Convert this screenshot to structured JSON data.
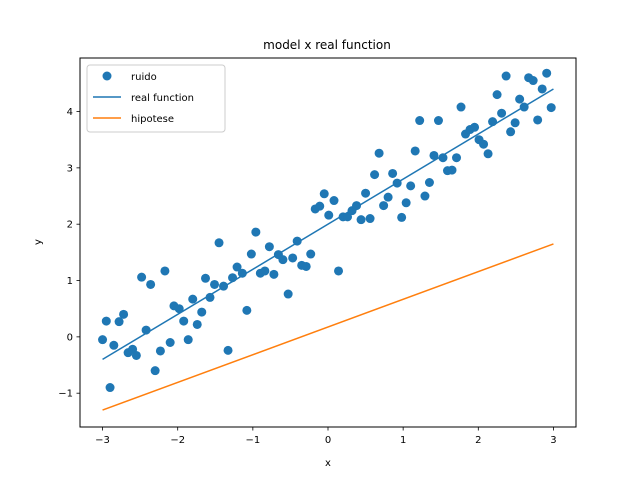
{
  "chart_data": {
    "type": "scatter",
    "title": "model x real function",
    "xlabel": "x",
    "ylabel": "y",
    "xlim": [
      -3.3,
      3.3
    ],
    "ylim": [
      -1.6,
      4.95
    ],
    "xticks": [
      -3,
      -2,
      -1,
      0,
      1,
      2,
      3
    ],
    "yticks": [
      -1,
      0,
      1,
      2,
      3,
      4
    ],
    "grid": false,
    "legend_position": "top-left",
    "series": [
      {
        "name": "ruido",
        "kind": "scatter",
        "color": "#1f77b4",
        "points": [
          [
            -3.0,
            -0.05
          ],
          [
            -2.95,
            0.28
          ],
          [
            -2.9,
            -0.9
          ],
          [
            -2.85,
            -0.15
          ],
          [
            -2.78,
            0.27
          ],
          [
            -2.72,
            0.4
          ],
          [
            -2.66,
            -0.28
          ],
          [
            -2.6,
            -0.22
          ],
          [
            -2.55,
            -0.33
          ],
          [
            -2.48,
            1.06
          ],
          [
            -2.42,
            0.12
          ],
          [
            -2.36,
            0.93
          ],
          [
            -2.3,
            -0.6
          ],
          [
            -2.23,
            -0.25
          ],
          [
            -2.17,
            1.17
          ],
          [
            -2.1,
            -0.1
          ],
          [
            -2.05,
            0.55
          ],
          [
            -1.98,
            0.5
          ],
          [
            -1.92,
            0.28
          ],
          [
            -1.86,
            -0.05
          ],
          [
            -1.8,
            0.67
          ],
          [
            -1.74,
            0.22
          ],
          [
            -1.68,
            0.44
          ],
          [
            -1.63,
            1.04
          ],
          [
            -1.57,
            0.7
          ],
          [
            -1.51,
            0.93
          ],
          [
            -1.45,
            1.67
          ],
          [
            -1.39,
            0.9
          ],
          [
            -1.33,
            -0.24
          ],
          [
            -1.27,
            1.05
          ],
          [
            -1.21,
            1.24
          ],
          [
            -1.14,
            1.13
          ],
          [
            -1.08,
            0.47
          ],
          [
            -1.02,
            1.47
          ],
          [
            -0.96,
            1.86
          ],
          [
            -0.9,
            1.13
          ],
          [
            -0.84,
            1.17
          ],
          [
            -0.78,
            1.6
          ],
          [
            -0.72,
            1.11
          ],
          [
            -0.66,
            1.46
          ],
          [
            -0.6,
            1.37
          ],
          [
            -0.53,
            0.76
          ],
          [
            -0.47,
            1.4
          ],
          [
            -0.41,
            1.7
          ],
          [
            -0.35,
            1.27
          ],
          [
            -0.29,
            1.25
          ],
          [
            -0.23,
            1.47
          ],
          [
            -0.17,
            2.27
          ],
          [
            -0.11,
            2.32
          ],
          [
            -0.05,
            2.54
          ],
          [
            0.01,
            2.16
          ],
          [
            0.08,
            2.42
          ],
          [
            0.14,
            1.17
          ],
          [
            0.2,
            2.13
          ],
          [
            0.26,
            2.13
          ],
          [
            0.32,
            2.24
          ],
          [
            0.38,
            2.33
          ],
          [
            0.44,
            2.08
          ],
          [
            0.5,
            2.55
          ],
          [
            0.56,
            2.1
          ],
          [
            0.62,
            2.88
          ],
          [
            0.68,
            3.26
          ],
          [
            0.74,
            2.33
          ],
          [
            0.8,
            2.48
          ],
          [
            0.86,
            2.9
          ],
          [
            0.92,
            2.73
          ],
          [
            0.98,
            2.12
          ],
          [
            1.04,
            2.38
          ],
          [
            1.1,
            2.68
          ],
          [
            1.16,
            3.3
          ],
          [
            1.22,
            3.84
          ],
          [
            1.29,
            2.5
          ],
          [
            1.35,
            2.74
          ],
          [
            1.41,
            3.22
          ],
          [
            1.47,
            3.84
          ],
          [
            1.53,
            3.18
          ],
          [
            1.59,
            2.95
          ],
          [
            1.65,
            2.96
          ],
          [
            1.71,
            3.18
          ],
          [
            1.77,
            4.08
          ],
          [
            1.83,
            3.6
          ],
          [
            1.89,
            3.68
          ],
          [
            1.95,
            3.72
          ],
          [
            2.01,
            3.5
          ],
          [
            2.07,
            3.42
          ],
          [
            2.13,
            3.25
          ],
          [
            2.19,
            3.82
          ],
          [
            2.25,
            4.3
          ],
          [
            2.31,
            3.97
          ],
          [
            2.37,
            4.63
          ],
          [
            2.43,
            3.64
          ],
          [
            2.49,
            3.8
          ],
          [
            2.55,
            4.22
          ],
          [
            2.61,
            4.08
          ],
          [
            2.67,
            4.6
          ],
          [
            2.73,
            4.55
          ],
          [
            2.79,
            3.85
          ],
          [
            2.85,
            4.4
          ],
          [
            2.91,
            4.68
          ],
          [
            2.97,
            4.07
          ]
        ]
      },
      {
        "name": "real function",
        "kind": "line",
        "color": "#1f77b4",
        "points": [
          [
            -3.0,
            -0.4
          ],
          [
            3.0,
            4.4
          ]
        ]
      },
      {
        "name": "hipotese",
        "kind": "line",
        "color": "#ff7f0e",
        "points": [
          [
            -3.0,
            -1.3
          ],
          [
            3.0,
            1.65
          ]
        ]
      }
    ]
  }
}
